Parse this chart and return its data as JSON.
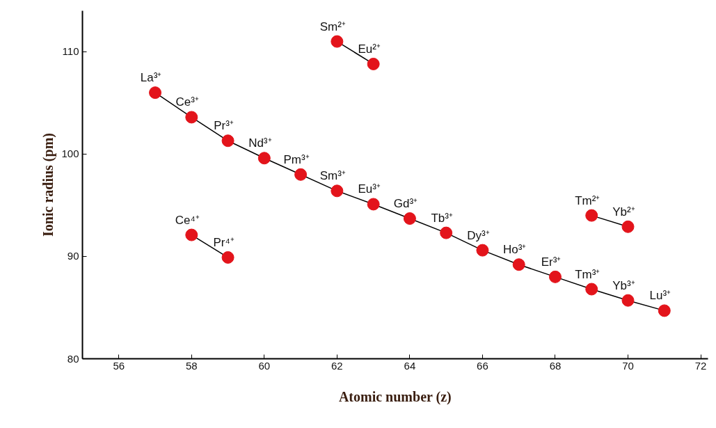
{
  "chart_data": {
    "type": "line",
    "xlabel": "Atomic number (z)",
    "ylabel": "Ionic radius (pm)",
    "xlim": [
      55,
      72.2
    ],
    "ylim": [
      80,
      114
    ],
    "xticks": [
      56,
      58,
      60,
      62,
      64,
      66,
      68,
      70,
      72
    ],
    "yticks": [
      80,
      90,
      100,
      110
    ],
    "grid": false,
    "marker": "circle",
    "line_style": "solid",
    "series": [
      {
        "x": [
          57,
          58,
          59,
          60,
          61,
          62,
          63,
          64,
          65,
          66,
          67,
          68,
          69,
          70,
          71
        ],
        "color": "#e3141b",
        "values": [
          106.0,
          103.6,
          101.3,
          99.6,
          98.0,
          96.4,
          95.1,
          93.7,
          92.3,
          90.6,
          89.2,
          88.0,
          86.8,
          85.7,
          84.7
        ],
        "value_labels": [
          "La³⁺",
          "Ce³⁺",
          "Pr³⁺",
          "Nd³⁺",
          "Pm³⁺",
          "Sm³⁺",
          "Eu³⁺",
          "Gd³⁺",
          "Tb³⁺",
          "Dy³⁺",
          "Ho³⁺",
          "Er³⁺",
          "Tm³⁺",
          "Yb³⁺",
          "Lu³⁺"
        ]
      },
      {
        "x": [
          62,
          63
        ],
        "color": "#e3141b",
        "values": [
          111.0,
          108.8
        ],
        "value_labels": [
          "Sm²⁺",
          "Eu²⁺"
        ]
      },
      {
        "x": [
          58,
          59
        ],
        "color": "#e3141b",
        "values": [
          92.1,
          89.9
        ],
        "value_labels": [
          "Ce⁴⁺",
          "Pr⁴⁺"
        ]
      },
      {
        "x": [
          69,
          70
        ],
        "color": "#e3141b",
        "values": [
          94.0,
          92.9
        ],
        "value_labels": [
          "Tm²⁺",
          "Yb²⁺"
        ]
      }
    ]
  }
}
